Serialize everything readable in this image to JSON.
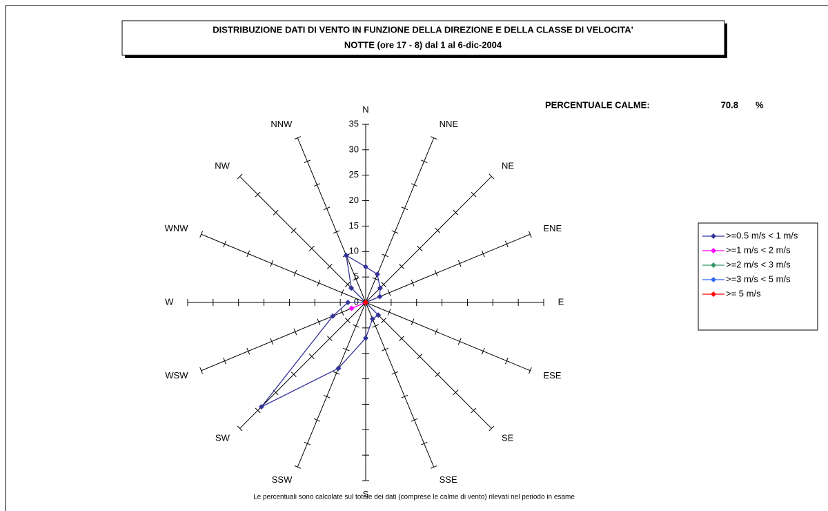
{
  "chart_data": {
    "type": "radar",
    "title": "DISTRIBUZIONE DATI DI VENTO IN FUNZIONE DELLA DIREZIONE E DELLA CLASSE DI VELOCITA'",
    "subtitle": "NOTTE (ore 17 - 8)  dal 1 al 6-dic-2004",
    "calm_label": "PERCENTUALE CALME:",
    "calm_value": 70.8,
    "calm_unit": "%",
    "footnote": "Le percentuali sono calcolate sul totale dei dati (comprese le calme di vento) rilevati nel periodo in esame",
    "categories": [
      "N",
      "NNE",
      "NE",
      "ENE",
      "E",
      "ESE",
      "SE",
      "SSE",
      "S",
      "SSW",
      "SW",
      "WSW",
      "W",
      "WNW",
      "NW",
      "NNW"
    ],
    "rlim": [
      0,
      35
    ],
    "rticks": [
      0,
      5,
      10,
      15,
      20,
      25,
      30,
      35
    ],
    "legend": "right",
    "series": [
      {
        "name": ">=0.5 m/s < 1 m/s",
        "color": "#333399",
        "values": [
          7,
          6,
          4,
          3,
          0,
          0,
          3.5,
          3.5,
          7,
          14,
          29,
          7,
          3.5,
          0,
          4,
          10
        ]
      },
      {
        "name": ">=1 m/s < 2 m/s",
        "color": "#ff00ff",
        "values": [
          0,
          0,
          0,
          0,
          0,
          0,
          0,
          0,
          0,
          0,
          0,
          3,
          0,
          0,
          0,
          0
        ]
      },
      {
        "name": ">=2 m/s < 3 m/s",
        "color": "#339966",
        "values": [
          0,
          0,
          0,
          0,
          0,
          0,
          0,
          0,
          0,
          0,
          0,
          0,
          0,
          0,
          0,
          0
        ]
      },
      {
        "name": ">=3 m/s < 5 m/s",
        "color": "#3366ff",
        "values": [
          0,
          0,
          0,
          0,
          0,
          0,
          0,
          0,
          0,
          0,
          0,
          0,
          0,
          0,
          0,
          0
        ]
      },
      {
        "name": ">= 5 m/s",
        "color": "#ff0000",
        "values": [
          0,
          0,
          0,
          0,
          0,
          0,
          0,
          0,
          0,
          0,
          0,
          0,
          0,
          0,
          0,
          0
        ]
      }
    ]
  }
}
